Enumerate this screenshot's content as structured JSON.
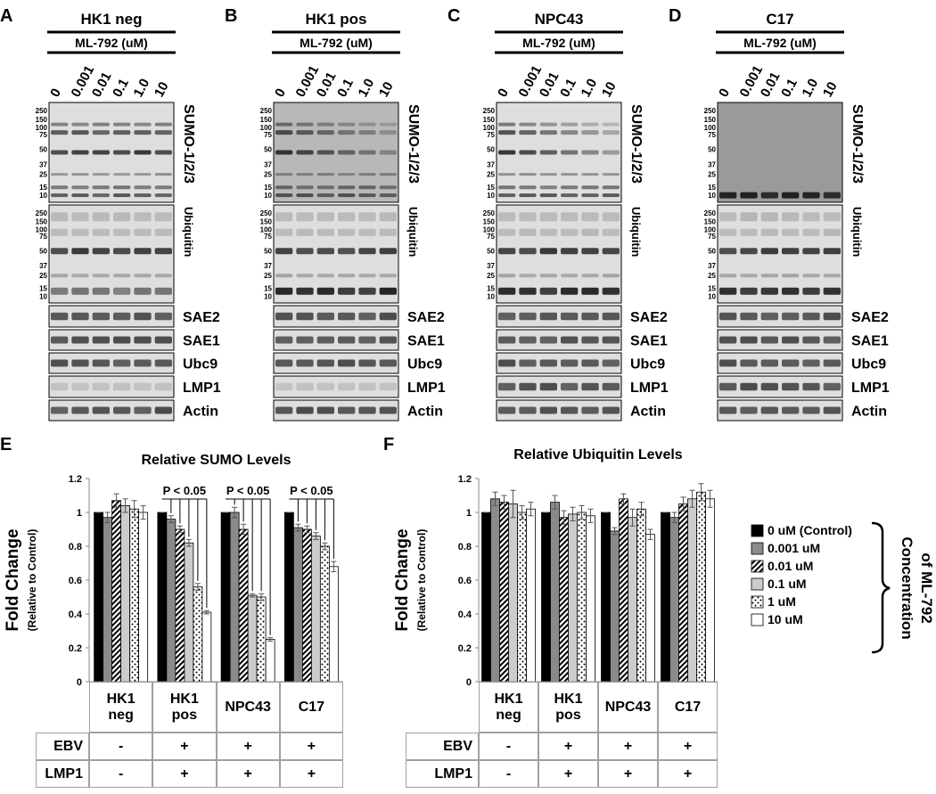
{
  "blots": {
    "treatment": "ML-792 (uM)",
    "concentrations": [
      "0",
      "0.001",
      "0.01",
      "0.1",
      "1.0",
      "10"
    ],
    "markers": [
      "250",
      "150",
      "100",
      "75",
      "50",
      "37",
      "25",
      "15",
      "10"
    ],
    "proteins": [
      "SUMO-1/2/3",
      "Ubiquitin",
      "SAE2",
      "SAE1",
      "Ubc9",
      "LMP1",
      "Actin"
    ],
    "panels": [
      {
        "label": "A",
        "cell_line": "HK1 neg"
      },
      {
        "label": "B",
        "cell_line": "HK1 pos"
      },
      {
        "label": "C",
        "cell_line": "NPC43"
      },
      {
        "label": "D",
        "cell_line": "C17"
      }
    ]
  },
  "chart_data": [
    {
      "type": "bar",
      "label": "E",
      "title": "Relative SUMO Levels",
      "ylabel": "Fold Change",
      "ylabel_sub": "(Relative to Control)",
      "categories": [
        "HK1 neg",
        "HK1 pos",
        "NPC43",
        "C17"
      ],
      "series": [
        {
          "color": "#000000",
          "values": [
            1,
            1,
            1,
            1
          ],
          "errors": [
            0,
            0,
            0,
            0
          ]
        },
        {
          "color": "#8a8a8a",
          "values": [
            0.97,
            0.96,
            1.0,
            0.91
          ],
          "errors": [
            0.03,
            0.02,
            0.03,
            0.02
          ]
        },
        {
          "color": "#000000",
          "pattern": "stripes",
          "values": [
            1.07,
            0.9,
            0.9,
            0.9
          ],
          "errors": [
            0.04,
            0.02,
            0.03,
            0.02
          ]
        },
        {
          "color": "#cccccc",
          "values": [
            1.04,
            0.82,
            0.51,
            0.86
          ],
          "errors": [
            0.04,
            0.02,
            0.01,
            0.02
          ]
        },
        {
          "color": "#000000",
          "pattern": "dots",
          "values": [
            1.02,
            0.56,
            0.5,
            0.8
          ],
          "errors": [
            0.05,
            0.02,
            0.02,
            0.02
          ]
        },
        {
          "color": "#ffffff",
          "values": [
            1.0,
            0.41,
            0.25,
            0.68
          ],
          "errors": [
            0.04,
            0.01,
            0.01,
            0.03
          ]
        }
      ],
      "ylim": [
        0,
        1.2
      ],
      "yticks": [
        0,
        0.2,
        0.4,
        0.6,
        0.8,
        1,
        1.2
      ],
      "annotations": [
        "P < 0.05",
        "P < 0.05",
        "P < 0.05"
      ],
      "conditions": [
        {
          "label": "EBV",
          "values": [
            "-",
            "+",
            "+",
            "+"
          ]
        },
        {
          "label": "LMP1",
          "values": [
            "-",
            "+",
            "+",
            "+"
          ]
        }
      ]
    },
    {
      "type": "bar",
      "label": "F",
      "title": "Relative Ubiquitin Levels",
      "ylabel": "Fold Change",
      "ylabel_sub": "(Relative to Control)",
      "categories": [
        "HK1 neg",
        "HK1 pos",
        "NPC43",
        "C17"
      ],
      "series": [
        {
          "name": "0 uM (Control)",
          "color": "#000000",
          "values": [
            1,
            1,
            1,
            1
          ],
          "errors": [
            0,
            0,
            0,
            0
          ]
        },
        {
          "name": "0.001 uM",
          "color": "#8a8a8a",
          "values": [
            1.08,
            1.06,
            0.89,
            0.97
          ],
          "errors": [
            0.04,
            0.04,
            0.02,
            0.03
          ]
        },
        {
          "name": "0.01 uM",
          "color": "#000000",
          "pattern": "stripes",
          "values": [
            1.06,
            0.97,
            1.08,
            1.05
          ],
          "errors": [
            0.04,
            0.04,
            0.03,
            0.04
          ]
        },
        {
          "name": "0.1 uM",
          "color": "#cccccc",
          "values": [
            1.05,
            0.99,
            0.97,
            1.08
          ],
          "errors": [
            0.08,
            0.04,
            0.05,
            0.05
          ]
        },
        {
          "name": "1 uM",
          "color": "#000000",
          "pattern": "dots",
          "values": [
            1.0,
            1.0,
            1.02,
            1.12
          ],
          "errors": [
            0.04,
            0.04,
            0.04,
            0.05
          ]
        },
        {
          "name": "10 uM",
          "color": "#ffffff",
          "values": [
            1.02,
            0.98,
            0.87,
            1.08
          ],
          "errors": [
            0.04,
            0.04,
            0.03,
            0.05
          ]
        }
      ],
      "ylim": [
        0,
        1.2
      ],
      "yticks": [
        0,
        0.2,
        0.4,
        0.6,
        0.8,
        1,
        1.2
      ],
      "legend": "right",
      "legend_title": [
        "Concentration",
        "of ML-792"
      ],
      "conditions": [
        {
          "label": "EBV",
          "values": [
            "-",
            "+",
            "+",
            "+"
          ]
        },
        {
          "label": "LMP1",
          "values": [
            "-",
            "+",
            "+",
            "+"
          ]
        }
      ]
    }
  ]
}
